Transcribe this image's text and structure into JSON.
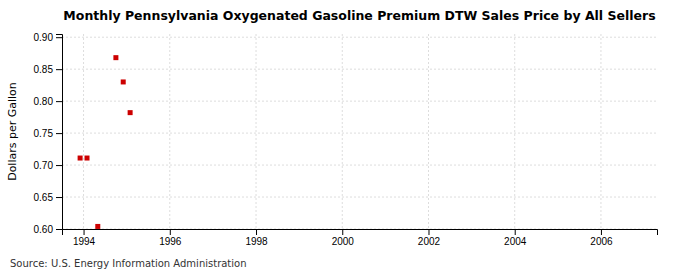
{
  "chart_data": {
    "type": "scatter",
    "title": "Monthly Pennsylvania Oxygenated Gasoline Premium DTW Sales Price by All Sellers",
    "ylabel": "Dollars per Gallon",
    "source": "Source: U.S. Energy Information Administration",
    "x": [
      1993.92,
      1994.08,
      1994.33,
      1994.75,
      1994.92,
      1995.08
    ],
    "values": [
      0.711,
      0.711,
      0.604,
      0.868,
      0.83,
      0.782
    ],
    "color": "#cc0000",
    "marker": "square",
    "xlim": [
      1993.5,
      2007.3
    ],
    "ylim": [
      0.6,
      0.905
    ],
    "xticks": [
      1994,
      1996,
      1998,
      2000,
      2002,
      2004,
      2006
    ],
    "yticks": [
      {
        "value": 0.6,
        "label": "0.60"
      },
      0.65,
      {
        "value": 0.7,
        "label": "0.70"
      },
      0.75,
      {
        "value": 0.8,
        "label": "0.80"
      },
      0.85,
      {
        "value": 0.9,
        "label": "0.90"
      }
    ],
    "grid": true
  }
}
